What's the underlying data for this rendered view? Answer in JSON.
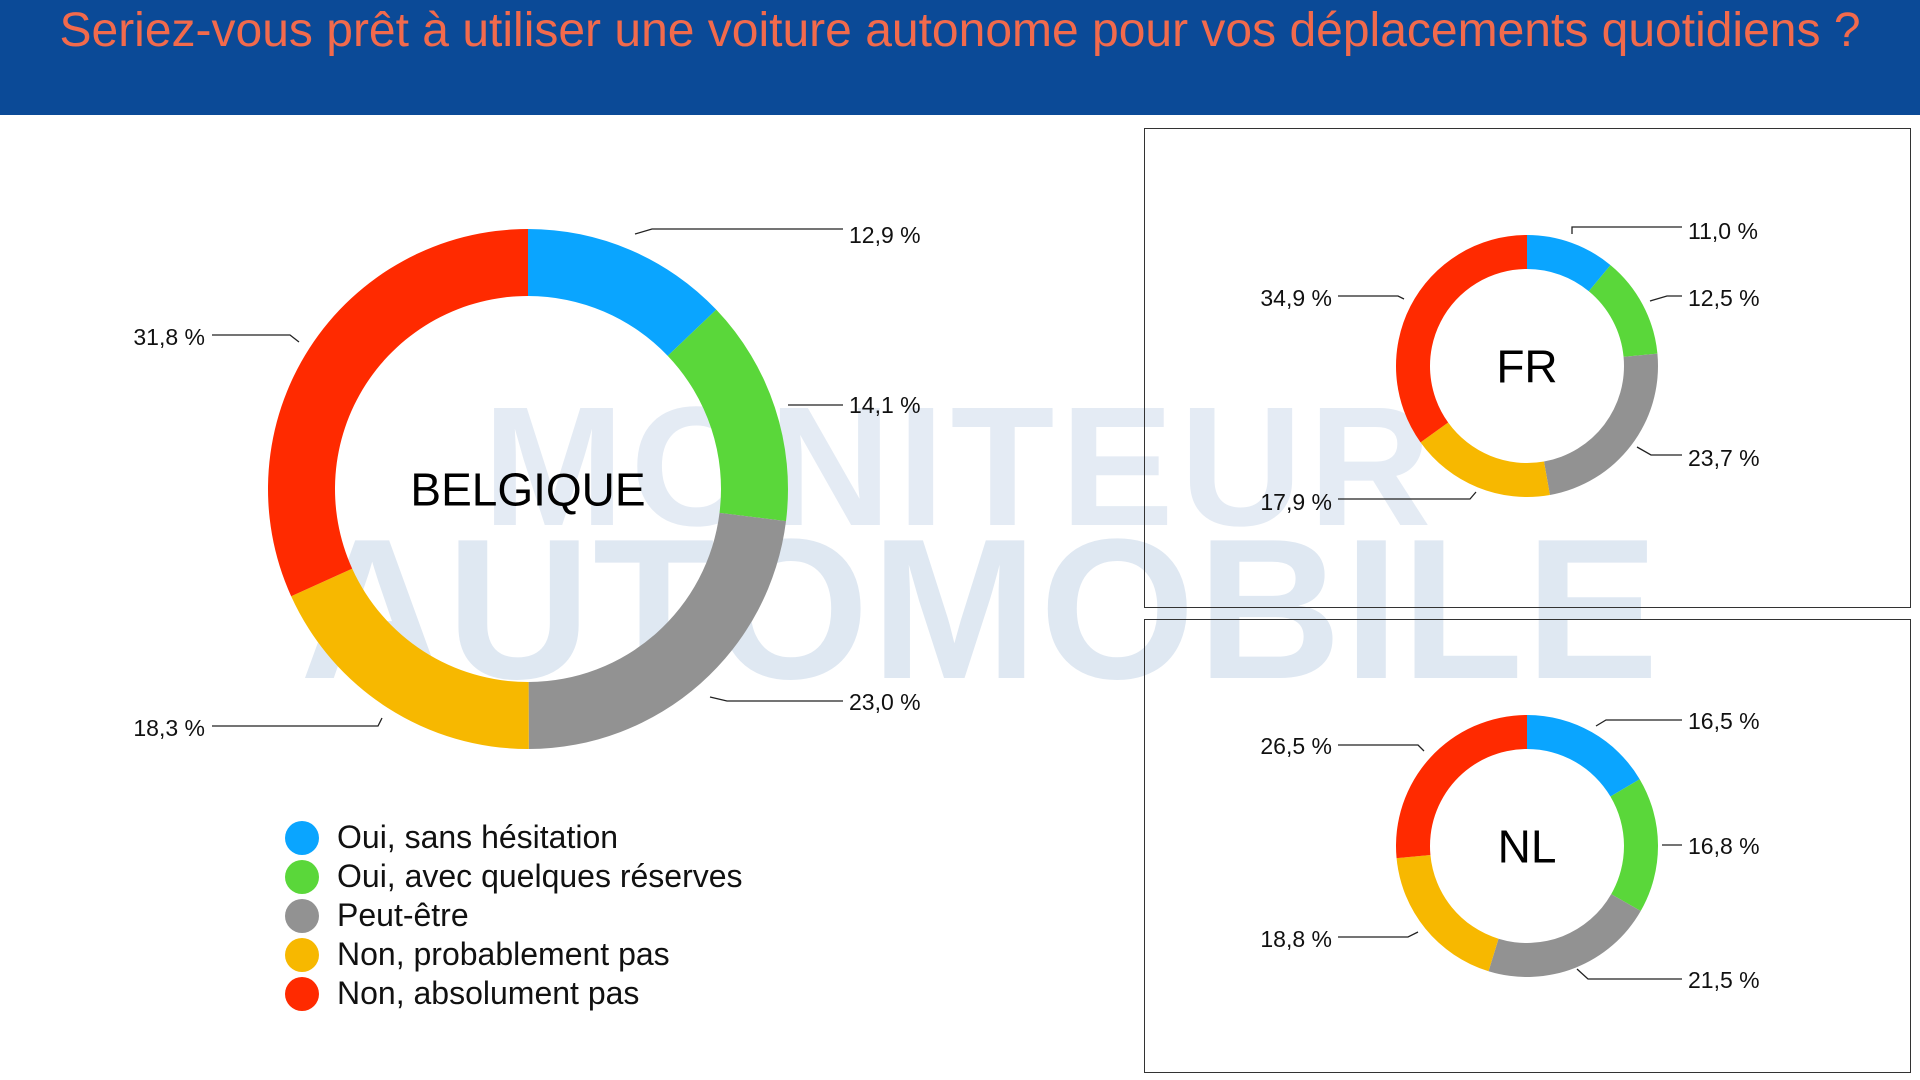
{
  "title": "Seriez-vous prêt à utiliser une voiture autonome pour vos déplacements quotidiens ?",
  "watermark": {
    "line1": "MONITEUR",
    "line2": "AUTOMOBILE"
  },
  "colors": {
    "header_bg": "#0b4a97",
    "title": "#f26a4c"
  },
  "legend": [
    {
      "label": "Oui, sans hésitation",
      "color": "#0aa5ff"
    },
    {
      "label": "Oui, avec quelques réserves",
      "color": "#5ad73a"
    },
    {
      "label": "Peut-être",
      "color": "#929292"
    },
    {
      "label": "Non, probablement pas",
      "color": "#f7b800"
    },
    {
      "label": "Non, absolument pas",
      "color": "#ff2a00"
    }
  ],
  "chart_data": [
    {
      "type": "pie",
      "donut": true,
      "center_label": "BELGIQUE",
      "categories": [
        "Oui, sans hésitation",
        "Oui, avec quelques réserves",
        "Peut-être",
        "Non, probablement pas",
        "Non, absolument pas"
      ],
      "values": [
        12.9,
        14.1,
        23.0,
        18.3,
        31.8
      ],
      "value_labels": [
        "12,9 %",
        "14,1 %",
        "23,0 %",
        "18,3 %",
        "31,8 %"
      ]
    },
    {
      "type": "pie",
      "donut": true,
      "center_label": "FR",
      "categories": [
        "Oui, sans hésitation",
        "Oui, avec quelques réserves",
        "Peut-être",
        "Non, probablement pas",
        "Non, absolument pas"
      ],
      "values": [
        11.0,
        12.5,
        23.7,
        17.9,
        34.9
      ],
      "value_labels": [
        "11,0 %",
        "12,5 %",
        "23,7 %",
        "17,9 %",
        "34,9 %"
      ]
    },
    {
      "type": "pie",
      "donut": true,
      "center_label": "NL",
      "categories": [
        "Oui, sans hésitation",
        "Oui, avec quelques réserves",
        "Peut-être",
        "Non, probablement pas",
        "Non, absolument pas"
      ],
      "values": [
        16.5,
        16.8,
        21.5,
        18.8,
        26.5
      ],
      "value_labels": [
        "16,5 %",
        "16,8 %",
        "21,5 %",
        "18,8 %",
        "26,5 %"
      ]
    }
  ]
}
